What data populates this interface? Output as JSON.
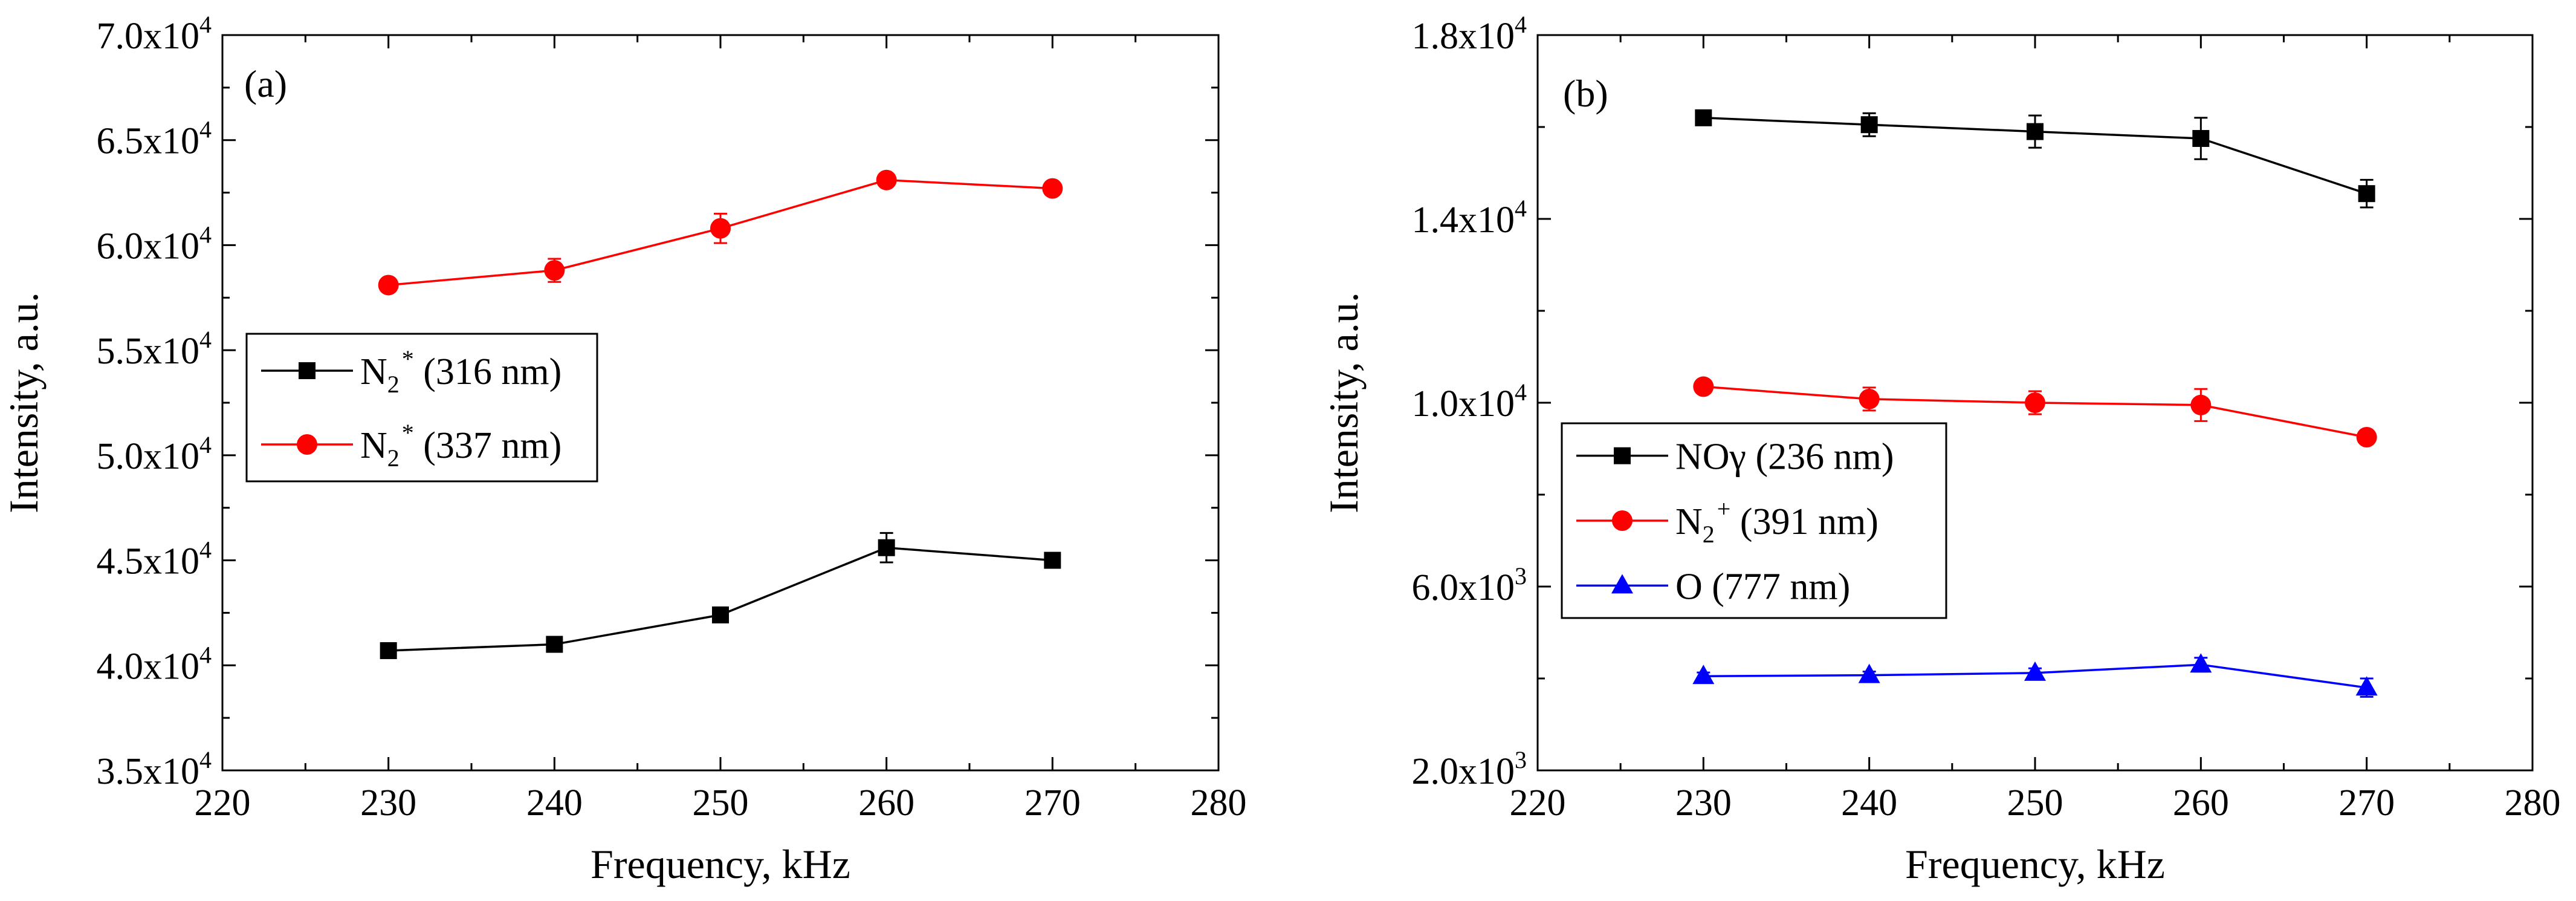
{
  "chart_data": [
    {
      "panel": "(a)",
      "type": "line",
      "xlabel": "Frequency, kHz",
      "ylabel": "Intensity, a.u.",
      "xlim": [
        220,
        280
      ],
      "ylim": [
        35000,
        70000
      ],
      "x_ticks": [
        "220",
        "230",
        "240",
        "250",
        "260",
        "270",
        "280"
      ],
      "y_ticks": [
        {
          "mant": "3.5x10",
          "exp": "4"
        },
        {
          "mant": "4.0x10",
          "exp": "4"
        },
        {
          "mant": "4.5x10",
          "exp": "4"
        },
        {
          "mant": "5.0x10",
          "exp": "4"
        },
        {
          "mant": "5.5x10",
          "exp": "4"
        },
        {
          "mant": "6.0x10",
          "exp": "4"
        },
        {
          "mant": "6.5x10",
          "exp": "4"
        },
        {
          "mant": "7.0x10",
          "exp": "4"
        }
      ],
      "legend_position": "middle-left",
      "series": [
        {
          "legend": {
            "base": "N",
            "sub": "2",
            "sup": "*",
            "rest": " (316 nm)"
          },
          "marker": "square",
          "color": "#000000",
          "x": [
            230,
            240,
            250,
            260,
            270
          ],
          "y": [
            40700,
            41000,
            42400,
            45600,
            45000
          ],
          "err": [
            200,
            250,
            300,
            700,
            200
          ]
        },
        {
          "legend": {
            "base": "N",
            "sub": "2",
            "sup": "*",
            "rest": " (337 nm)"
          },
          "marker": "circle",
          "color": "#ff0000",
          "x": [
            230,
            240,
            250,
            260,
            270
          ],
          "y": [
            58100,
            58800,
            60800,
            63100,
            62700
          ],
          "err": [
            250,
            550,
            700,
            300,
            250
          ]
        }
      ]
    },
    {
      "panel": "(b)",
      "type": "line",
      "xlabel": "Frequency, kHz",
      "ylabel": "Intensity, a.u.",
      "xlim": [
        220,
        280
      ],
      "ylim": [
        2000,
        18000
      ],
      "x_ticks": [
        "220",
        "230",
        "240",
        "250",
        "260",
        "270",
        "280"
      ],
      "y_ticks": [
        {
          "mant": "2.0x10",
          "exp": "3"
        },
        {
          "mant": "6.0x10",
          "exp": "3"
        },
        {
          "mant": "1.0x10",
          "exp": "4"
        },
        {
          "mant": "1.4x10",
          "exp": "4"
        },
        {
          "mant": "1.8x10",
          "exp": "4"
        }
      ],
      "legend_position": "lower-left",
      "series": [
        {
          "legend": {
            "base": "NOγ",
            "sub": "",
            "sup": "",
            "rest": " (236 nm)"
          },
          "marker": "square",
          "color": "#000000",
          "x": [
            230,
            240,
            250,
            260,
            270
          ],
          "y": [
            16200,
            16050,
            15900,
            15750,
            14550
          ],
          "err": [
            120,
            250,
            350,
            450,
            300
          ]
        },
        {
          "legend": {
            "base": "N",
            "sub": "2",
            "sup": "+",
            "rest": " (391 nm)"
          },
          "marker": "circle",
          "color": "#ff0000",
          "x": [
            230,
            240,
            250,
            260,
            270
          ],
          "y": [
            10350,
            10080,
            10000,
            9950,
            9250
          ],
          "err": [
            120,
            250,
            250,
            350,
            120
          ]
        },
        {
          "legend": {
            "base": "O",
            "sub": "",
            "sup": "",
            "rest": " (777 nm)"
          },
          "marker": "triangle",
          "color": "#0000ff",
          "x": [
            230,
            240,
            250,
            260,
            270
          ],
          "y": [
            4050,
            4070,
            4120,
            4300,
            3800
          ],
          "err": [
            80,
            80,
            100,
            150,
            200
          ]
        }
      ]
    }
  ]
}
